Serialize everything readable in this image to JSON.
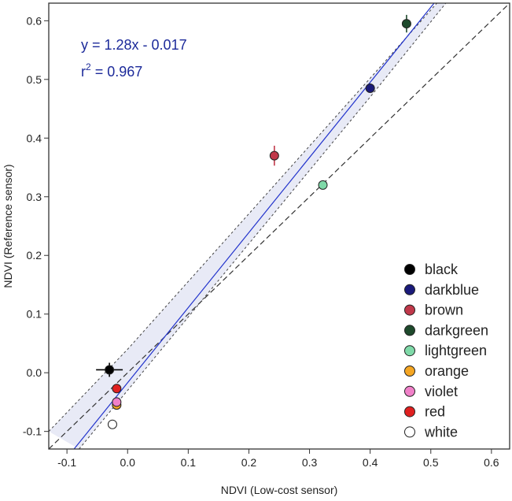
{
  "chart_data": {
    "type": "scatter",
    "xlabel": "NDVI (Low-cost sensor)",
    "ylabel": "NDVI (Reference sensor)",
    "xlim": [
      -0.13,
      0.63
    ],
    "ylim": [
      -0.13,
      0.63
    ],
    "xticks": [
      -0.1,
      0.0,
      0.1,
      0.2,
      0.3,
      0.4,
      0.5,
      0.6
    ],
    "yticks": [
      -0.1,
      0.0,
      0.1,
      0.2,
      0.3,
      0.4,
      0.5,
      0.6
    ],
    "xtick_labels": [
      "-0.1",
      "0.0",
      "0.1",
      "0.2",
      "0.3",
      "0.4",
      "0.5",
      "0.6"
    ],
    "ytick_labels": [
      "-0.1",
      "0.0",
      "0.1",
      "0.2",
      "0.3",
      "0.4",
      "0.5",
      "0.6"
    ],
    "grid": false,
    "legend_position": "bottom-right",
    "annotation": {
      "equation": "y = 1.28x - 0.017",
      "r2_prefix": "r",
      "r2_sup": "2",
      "r2_value": " = 0.967"
    },
    "regression": {
      "slope": 1.28,
      "intercept": -0.017,
      "color": "#2233cc"
    },
    "confidence_band": {
      "color": "#e8eaf6",
      "upper": [
        [
          -0.13,
          -0.1
        ],
        [
          0.0,
          0.04
        ],
        [
          0.2,
          0.271
        ],
        [
          0.4,
          0.502
        ],
        [
          0.51,
          0.63
        ]
      ],
      "lower": [
        [
          -0.08,
          -0.13
        ],
        [
          0.0,
          -0.03
        ],
        [
          0.2,
          0.22
        ],
        [
          0.4,
          0.47
        ],
        [
          0.63,
          0.765
        ]
      ]
    },
    "identity_line": {
      "slope": 1.0,
      "intercept": 0.0,
      "color": "#333333"
    },
    "series": [
      {
        "name": "black",
        "color": "#000000",
        "x": -0.03,
        "y": 0.005,
        "xerr": 0.022,
        "yerr": 0.012
      },
      {
        "name": "darkblue",
        "color": "#1a1a7a",
        "x": 0.4,
        "y": 0.485,
        "xerr": 0.0,
        "yerr": 0.006
      },
      {
        "name": "brown",
        "color": "#c0384a",
        "x": 0.242,
        "y": 0.37,
        "xerr": 0.003,
        "yerr": 0.017
      },
      {
        "name": "darkgreen",
        "color": "#1e4a2c",
        "x": 0.46,
        "y": 0.595,
        "xerr": 0.006,
        "yerr": 0.015
      },
      {
        "name": "lightgreen",
        "color": "#7fd9a8",
        "x": 0.322,
        "y": 0.32,
        "xerr": 0.0,
        "yerr": 0.0
      },
      {
        "name": "orange",
        "color": "#f5a623",
        "x": -0.018,
        "y": -0.055,
        "xerr": 0.0,
        "yerr": 0.005
      },
      {
        "name": "violet",
        "color": "#f080c8",
        "x": -0.018,
        "y": -0.05,
        "xerr": 0.0,
        "yerr": 0.005
      },
      {
        "name": "red",
        "color": "#e02020",
        "x": -0.018,
        "y": -0.027,
        "xerr": 0.0,
        "yerr": 0.005
      },
      {
        "name": "white",
        "color": "#ffffff",
        "x": -0.025,
        "y": -0.088,
        "xerr": 0.0,
        "yerr": 0.0
      }
    ]
  }
}
